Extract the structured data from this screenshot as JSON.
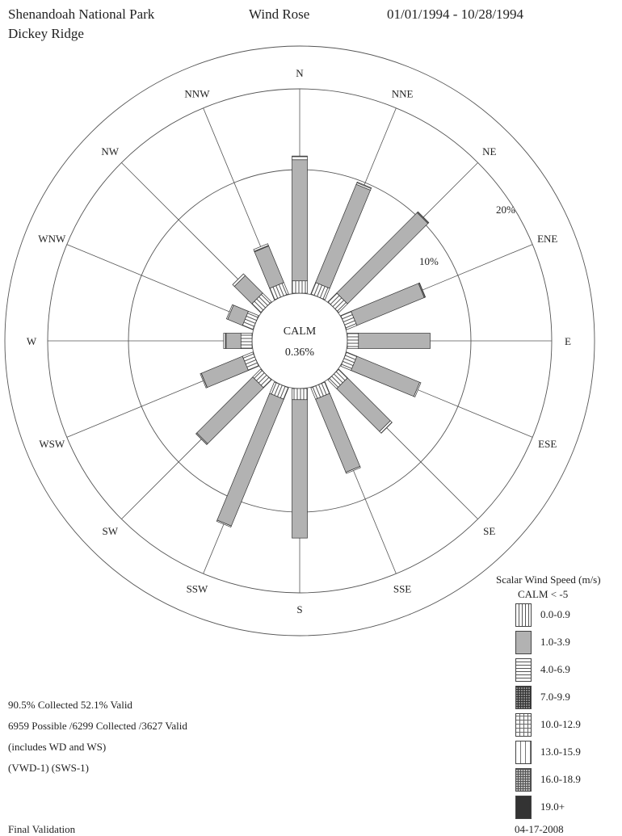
{
  "header": {
    "park": "Shenandoah National Park",
    "site": "Dickey Ridge",
    "title": "Wind Rose",
    "date_range": "01/01/1994 - 10/28/1994"
  },
  "stats": {
    "line1": "90.5% Collected  52.1% Valid",
    "line2": "6959 Possible /6299 Collected /3627 Valid",
    "line3": "(includes WD and WS)",
    "line4": "(VWD-1)  (SWS-1)"
  },
  "footer": {
    "left": "Final Validation",
    "right": "04-17-2008"
  },
  "chart_data": {
    "type": "wind-rose",
    "title": "Wind Rose",
    "calm_label": "CALM",
    "calm_value": "0.36%",
    "ring_labels": [
      "10%",
      "20%"
    ],
    "rings_percent": [
      10,
      20
    ],
    "directions": [
      "N",
      "NNE",
      "NE",
      "ENE",
      "E",
      "ESE",
      "SE",
      "SSE",
      "S",
      "SSW",
      "SW",
      "WSW",
      "W",
      "WNW",
      "NW",
      "NNW"
    ],
    "speed_bins": [
      "0.0-0.9",
      "1.0-3.9",
      "4.0-6.9",
      "7.0-9.9",
      "10.0-12.9",
      "13.0-15.9",
      "16.0-18.9",
      "19.0+"
    ],
    "series": [
      {
        "name": "0.0-0.9",
        "values": [
          1.0,
          1.0,
          1.0,
          0.9,
          0.9,
          0.9,
          1.0,
          1.0,
          0.9,
          1.0,
          0.9,
          0.9,
          0.9,
          0.9,
          1.0,
          1.0
        ]
      },
      {
        "name": "1.0-3.9",
        "values": [
          9.8,
          8.6,
          9.2,
          5.9,
          5.8,
          5.5,
          4.9,
          6.4,
          11.2,
          11.1,
          6.4,
          3.6,
          1.2,
          1.3,
          2.0,
          3.2
        ]
      },
      {
        "name": "4.0-6.9",
        "values": [
          0.3,
          0.2,
          0.1,
          0.1,
          0.0,
          0.1,
          0.2,
          0.1,
          0.0,
          0.1,
          0.1,
          0.1,
          0.2,
          0.1,
          0.2,
          0.2
        ]
      }
    ],
    "legend": {
      "title": "Scalar Wind Speed (m/s)",
      "calm_note": "CALM < -5",
      "entries": [
        "0.0-0.9",
        "1.0-3.9",
        "4.0-6.9",
        "7.0-9.9",
        "10.0-12.9",
        "13.0-15.9",
        "16.0-18.9",
        "19.0+"
      ],
      "colors": {
        "1.0-3.9": "#b2b2b2",
        "19.0+": "#333333"
      }
    }
  }
}
